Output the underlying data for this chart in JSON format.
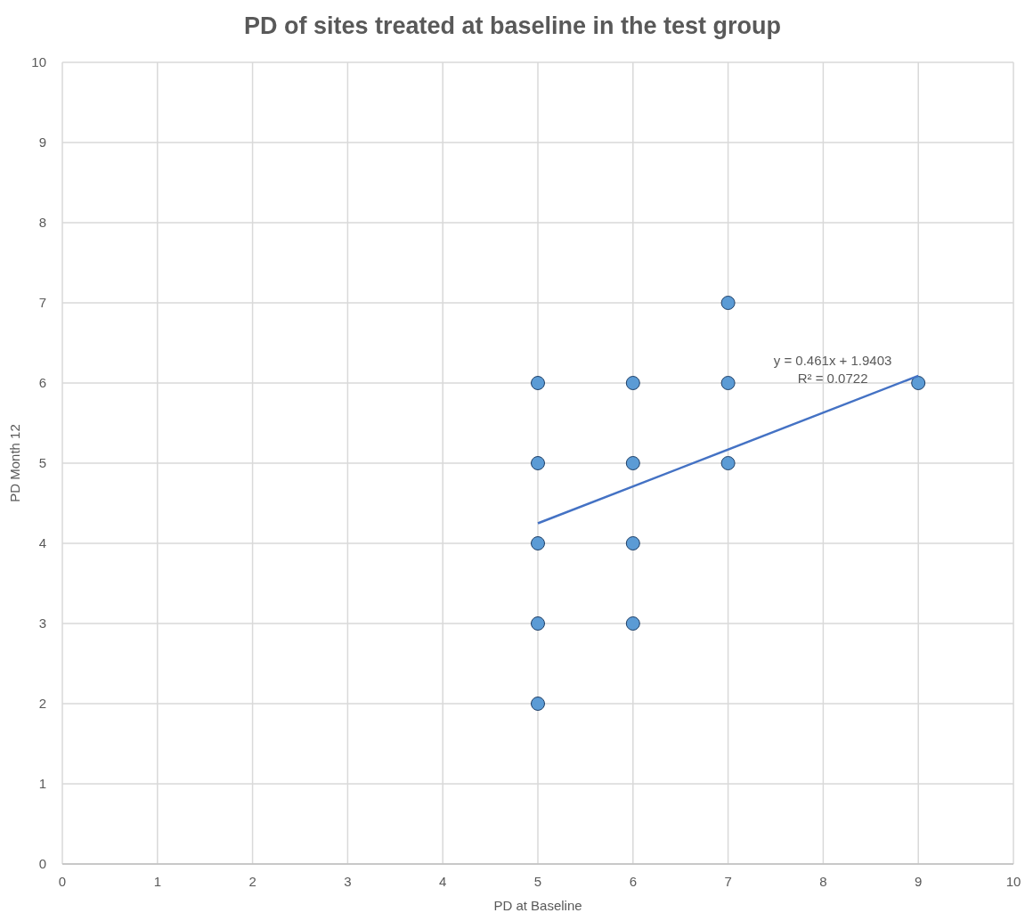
{
  "chart_data": {
    "type": "scatter",
    "title": "PD of sites treated at baseline in the test group",
    "xlabel": "PD at Baseline",
    "ylabel": "PD Month 12",
    "xlim": [
      0,
      10
    ],
    "ylim": [
      0,
      10
    ],
    "xticks": [
      0,
      1,
      2,
      3,
      4,
      5,
      6,
      7,
      8,
      9,
      10
    ],
    "yticks": [
      0,
      1,
      2,
      3,
      4,
      5,
      6,
      7,
      8,
      9,
      10
    ],
    "grid": true,
    "marker": "circle",
    "series": [
      {
        "color": "#5b9bd5",
        "x": [
          5,
          5,
          5,
          5,
          5,
          6,
          6,
          6,
          6,
          7,
          7,
          7,
          9
        ],
        "values": [
          2,
          3,
          4,
          5,
          6,
          3,
          4,
          5,
          6,
          5,
          6,
          7,
          6
        ]
      },
      {
        "type": "line",
        "color": "#4472c4",
        "x": [
          5,
          9
        ],
        "values": [
          4.25,
          6.09
        ],
        "marker": "none",
        "line_style": "solid"
      }
    ],
    "annotations": [
      "y = 0.461x + 1.9403",
      "R² = 0.0722"
    ]
  }
}
